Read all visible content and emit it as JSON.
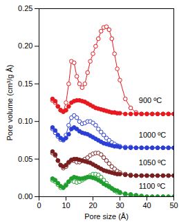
{
  "chart_data": {
    "type": "line",
    "x_label": "Pore size (Å)",
    "y_label": "Pore volume (cm³/g Å)",
    "xlim": [
      0,
      50
    ],
    "xticks": [
      0,
      10,
      20,
      30,
      40,
      50
    ],
    "ylim": [
      0,
      0.25
    ],
    "yticks": [
      {
        "value": 0,
        "label": "0.00"
      },
      {
        "value": 0.05,
        "label": "0.05"
      },
      {
        "value": 0.1,
        "label": "0.10"
      },
      {
        "value": 0.15,
        "label": "0.15"
      },
      {
        "value": 0.2,
        "label": "0.20"
      },
      {
        "value": 0.25,
        "label": "0.25"
      }
    ],
    "grid": false,
    "x": [
      5,
      6,
      7,
      8,
      9,
      10,
      11,
      12,
      13,
      14,
      15,
      16,
      17,
      18,
      19,
      20,
      21,
      22,
      23,
      24,
      25,
      26,
      27,
      28,
      29,
      30,
      32,
      34,
      36,
      38,
      40,
      42,
      44,
      46,
      48,
      50
    ],
    "series": [
      {
        "color": "#e8191f",
        "marker": "open_circle",
        "values": [
          0.128,
          0.125,
          0.12,
          0.115,
          0.113,
          0.125,
          0.15,
          0.18,
          0.178,
          0.16,
          0.15,
          0.145,
          0.15,
          0.165,
          0.18,
          0.19,
          0.2,
          0.21,
          0.22,
          0.225,
          0.226,
          0.222,
          0.21,
          0.19,
          0.17,
          0.155,
          0.13,
          0.118,
          0.112,
          0.11,
          0.11,
          0.11,
          0.11,
          0.11,
          0.11,
          0.11
        ]
      },
      {
        "color": "#e8191f",
        "marker": "circle",
        "values": [
          0.13,
          0.127,
          0.12,
          0.115,
          0.113,
          0.115,
          0.12,
          0.125,
          0.127,
          0.128,
          0.128,
          0.127,
          0.126,
          0.124,
          0.122,
          0.12,
          0.118,
          0.117,
          0.116,
          0.115,
          0.114,
          0.113,
          0.112,
          0.112,
          0.111,
          0.111,
          0.11,
          0.11,
          0.11,
          0.11,
          0.11,
          0.11,
          0.11,
          0.11,
          0.11,
          0.11
        ]
      },
      {
        "color": "#2b3fd6",
        "marker": "open_circle",
        "values": [
          0.09,
          0.085,
          0.08,
          0.076,
          0.075,
          0.082,
          0.095,
          0.105,
          0.108,
          0.105,
          0.1,
          0.097,
          0.098,
          0.1,
          0.1,
          0.098,
          0.095,
          0.09,
          0.086,
          0.082,
          0.078,
          0.075,
          0.072,
          0.07,
          0.068,
          0.067,
          0.066,
          0.066,
          0.065,
          0.065,
          0.065,
          0.065,
          0.065,
          0.065,
          0.065,
          0.065
        ]
      },
      {
        "color": "#2b3fd6",
        "marker": "circle",
        "values": [
          0.092,
          0.088,
          0.082,
          0.078,
          0.076,
          0.078,
          0.083,
          0.09,
          0.092,
          0.09,
          0.087,
          0.085,
          0.084,
          0.083,
          0.081,
          0.079,
          0.077,
          0.075,
          0.073,
          0.071,
          0.07,
          0.069,
          0.068,
          0.067,
          0.067,
          0.066,
          0.065,
          0.065,
          0.065,
          0.065,
          0.065,
          0.065,
          0.065,
          0.065,
          0.065,
          0.065
        ]
      },
      {
        "color": "#7a1f1f",
        "marker": "open_circle",
        "values": [
          0.058,
          0.055,
          0.048,
          0.042,
          0.038,
          0.04,
          0.045,
          0.048,
          0.048,
          0.046,
          0.046,
          0.048,
          0.05,
          0.052,
          0.055,
          0.057,
          0.058,
          0.058,
          0.056,
          0.052,
          0.048,
          0.044,
          0.04,
          0.037,
          0.034,
          0.032,
          0.03,
          0.029,
          0.028,
          0.028,
          0.028,
          0.028,
          0.028,
          0.028,
          0.028,
          0.028
        ]
      },
      {
        "color": "#7a1f1f",
        "marker": "circle",
        "values": [
          0.06,
          0.056,
          0.048,
          0.042,
          0.04,
          0.042,
          0.046,
          0.049,
          0.05,
          0.05,
          0.049,
          0.048,
          0.047,
          0.046,
          0.045,
          0.043,
          0.041,
          0.039,
          0.037,
          0.035,
          0.034,
          0.033,
          0.032,
          0.031,
          0.03,
          0.03,
          0.029,
          0.028,
          0.028,
          0.028,
          0.028,
          0.028,
          0.028,
          0.028,
          0.028,
          0.028
        ]
      },
      {
        "color": "#1f9e2e",
        "marker": "open_circle",
        "values": [
          0.022,
          0.02,
          0.016,
          0.012,
          0.012,
          0.016,
          0.02,
          0.022,
          0.02,
          0.019,
          0.02,
          0.022,
          0.024,
          0.026,
          0.028,
          0.03,
          0.03,
          0.029,
          0.026,
          0.022,
          0.018,
          0.014,
          0.011,
          0.008,
          0.006,
          0.005,
          0.003,
          0.002,
          0.001,
          0,
          0,
          0,
          0,
          0,
          0,
          0
        ]
      },
      {
        "color": "#1f9e2e",
        "marker": "circle",
        "values": [
          0.024,
          0.022,
          0.018,
          0.014,
          0.012,
          0.015,
          0.02,
          0.024,
          0.026,
          0.025,
          0.024,
          0.024,
          0.025,
          0.026,
          0.026,
          0.025,
          0.024,
          0.022,
          0.02,
          0.017,
          0.015,
          0.013,
          0.011,
          0.009,
          0.008,
          0.006,
          0.004,
          0.003,
          0.002,
          0.001,
          0,
          0,
          0,
          0,
          0,
          0
        ]
      }
    ],
    "annotations": [
      {
        "text": "900 ºC",
        "x": 37,
        "y": 0.128
      },
      {
        "text": "1000 ºC",
        "x": 37,
        "y": 0.082
      },
      {
        "text": "1050 ºC",
        "x": 37,
        "y": 0.045
      },
      {
        "text": "1100 ºC",
        "x": 37,
        "y": 0.014
      }
    ]
  }
}
